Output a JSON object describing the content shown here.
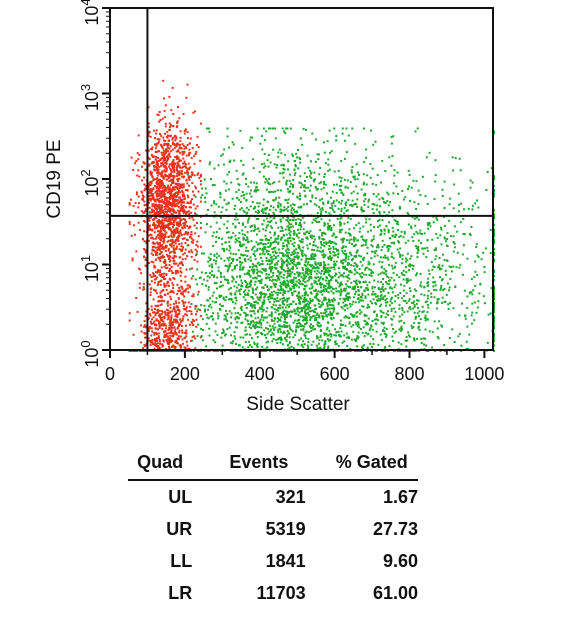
{
  "chart_data": {
    "type": "scatter",
    "xlabel": "Side Scatter",
    "ylabel": "CD19 PE",
    "xlim": [
      0,
      1023
    ],
    "ylim": [
      1,
      10000
    ],
    "y_scale": "log",
    "x_ticks": [
      "0",
      "200",
      "400",
      "600",
      "800",
      "1000"
    ],
    "x_tick_values": [
      0,
      200,
      400,
      600,
      800,
      1000
    ],
    "y_ticks": [
      {
        "value": 1,
        "base": "10",
        "exp": "0"
      },
      {
        "value": 10,
        "base": "10",
        "exp": "1"
      },
      {
        "value": 100,
        "base": "10",
        "exp": "2"
      },
      {
        "value": 1000,
        "base": "10",
        "exp": "3"
      },
      {
        "value": 10000,
        "base": "10",
        "exp": "4"
      }
    ],
    "quadrant_gate": {
      "x": 100,
      "y": 37
    },
    "series": [
      {
        "color": "#e8321c",
        "x_range": [
          50,
          240
        ],
        "y_range": [
          1,
          1500
        ],
        "count": 2200
      },
      {
        "color": "#1fa82c",
        "x_range": [
          200,
          1023
        ],
        "y_range": [
          1,
          400
        ],
        "count": 3800
      }
    ],
    "table": {
      "columns": [
        "Quad",
        "Events",
        "% Gated"
      ],
      "rows": [
        [
          "UL",
          "321",
          "1.67"
        ],
        [
          "UR",
          "5319",
          "27.73"
        ],
        [
          "LL",
          "1841",
          "9.60"
        ],
        [
          "LR",
          "11703",
          "61.00"
        ]
      ]
    }
  },
  "colors": {
    "red_population": "#e8321c",
    "green_population": "#1fa82c",
    "axis": "#111111"
  }
}
